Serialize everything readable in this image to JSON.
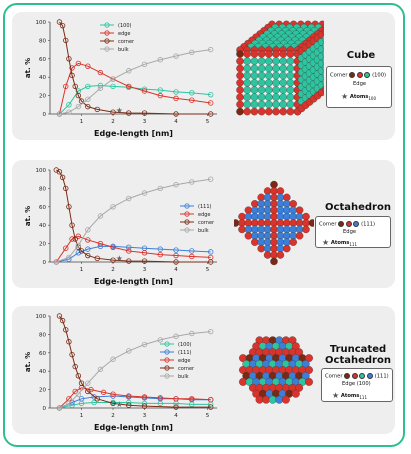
{
  "colors": {
    "frame": "#2fbf8f",
    "panel_bg": "#eeeeee",
    "facet_100": "#2ec4a0",
    "facet_111": "#3b7fd9",
    "edge": "#d9332b",
    "corner": "#7a2a14",
    "bulk": "#a8a8a8"
  },
  "panels": [
    {
      "shape_name": "Cube",
      "atom_icon": "cube-nanoparticle",
      "legend": {
        "corner_label": "Corner",
        "edge_label": "Edge",
        "facet_label": "(100)",
        "atoms_label": "Atoms",
        "atoms_sub": "100"
      }
    },
    {
      "shape_name": "Octahedron",
      "atom_icon": "octahedron-nanoparticle",
      "legend": {
        "corner_label": "Corner",
        "edge_label": "Edge",
        "facet_label": "(111)",
        "atoms_label": "Atoms",
        "atoms_sub": "111"
      }
    },
    {
      "shape_name": "Truncated Octahedron",
      "shape_name_line1": "Truncated",
      "shape_name_line2": "Octahedron",
      "atom_icon": "truncated-octahedron-nanoparticle",
      "legend": {
        "corner_label": "Corner",
        "facet_label": "(111)",
        "edge_label": "Edge (100)",
        "atoms_label": "Atoms",
        "atoms_sub": "111"
      }
    }
  ],
  "chart_data": [
    {
      "type": "line",
      "xlabel": "Edge-length [nm]",
      "ylabel": "at. %",
      "xlim": [
        0,
        5.3
      ],
      "ylim": [
        0,
        100
      ],
      "xticks": [
        1,
        2,
        3,
        4,
        5
      ],
      "yticks": [
        0,
        20,
        40,
        60,
        80,
        100
      ],
      "legend_position": "top-left",
      "series": [
        {
          "name": "(100)",
          "color": "#2ec4a0",
          "x": [
            0.3,
            0.6,
            0.9,
            1.2,
            1.6,
            2.0,
            2.5,
            3.0,
            3.5,
            4.0,
            4.5,
            5.1
          ],
          "y": [
            0,
            10,
            25,
            30,
            31,
            30,
            29,
            27,
            26,
            24,
            23,
            21
          ]
        },
        {
          "name": "edge",
          "color": "#d9332b",
          "x": [
            0.3,
            0.5,
            0.7,
            0.9,
            1.2,
            1.6,
            2.0,
            2.5,
            3.0,
            3.5,
            4.0,
            4.5,
            5.1
          ],
          "y": [
            0,
            30,
            50,
            55,
            52,
            45,
            38,
            30,
            25,
            20,
            17,
            15,
            12
          ]
        },
        {
          "name": "corner",
          "color": "#7a2a14",
          "x": [
            0.3,
            0.4,
            0.5,
            0.6,
            0.7,
            0.8,
            0.9,
            1.0,
            1.2,
            1.5,
            2.0,
            2.5,
            3.0,
            4.0,
            5.1
          ],
          "y": [
            100,
            96,
            80,
            60,
            42,
            30,
            20,
            14,
            8,
            5,
            2,
            1,
            1,
            0,
            0
          ]
        },
        {
          "name": "bulk",
          "color": "#a8a8a8",
          "x": [
            0.3,
            0.6,
            0.9,
            1.2,
            1.6,
            2.0,
            2.5,
            3.0,
            3.5,
            4.0,
            4.5,
            5.1
          ],
          "y": [
            0,
            2,
            8,
            16,
            28,
            38,
            47,
            54,
            59,
            63,
            67,
            70
          ]
        }
      ]
    },
    {
      "type": "line",
      "xlabel": "Edge-length [nm]",
      "ylabel": "at. %",
      "xlim": [
        0,
        5.3
      ],
      "ylim": [
        0,
        100
      ],
      "xticks": [
        1,
        2,
        3,
        4,
        5
      ],
      "yticks": [
        0,
        20,
        40,
        60,
        80,
        100
      ],
      "legend_position": "center-right",
      "series": [
        {
          "name": "(111)",
          "color": "#3b7fd9",
          "x": [
            0.2,
            0.6,
            0.9,
            1.2,
            1.6,
            2.0,
            2.5,
            3.0,
            3.5,
            4.0,
            4.5,
            5.1
          ],
          "y": [
            0,
            3,
            10,
            14,
            17,
            17,
            16,
            15,
            14,
            13,
            12,
            11
          ]
        },
        {
          "name": "edge",
          "color": "#d9332b",
          "x": [
            0.2,
            0.5,
            0.7,
            0.9,
            1.2,
            1.6,
            2.0,
            2.5,
            3.0,
            3.5,
            4.0,
            4.5,
            5.1
          ],
          "y": [
            0,
            15,
            25,
            28,
            24,
            20,
            16,
            12,
            10,
            8,
            7,
            6,
            5
          ]
        },
        {
          "name": "corner",
          "color": "#7a2a14",
          "x": [
            0.2,
            0.3,
            0.4,
            0.5,
            0.6,
            0.7,
            0.8,
            0.9,
            1.0,
            1.2,
            1.5,
            2.0,
            2.5,
            3.0,
            4.0,
            5.1
          ],
          "y": [
            100,
            98,
            92,
            80,
            60,
            40,
            25,
            16,
            12,
            7,
            4,
            2,
            1,
            1,
            0,
            0
          ]
        },
        {
          "name": "bulk",
          "color": "#a8a8a8",
          "x": [
            0.2,
            0.6,
            0.9,
            1.2,
            1.6,
            2.0,
            2.5,
            3.0,
            3.5,
            4.0,
            4.5,
            5.1
          ],
          "y": [
            0,
            5,
            18,
            35,
            50,
            60,
            69,
            75,
            80,
            84,
            87,
            90
          ]
        }
      ]
    },
    {
      "type": "line",
      "xlabel": "Edge-length [nm]",
      "ylabel": "at. %",
      "xlim": [
        0,
        5.3
      ],
      "ylim": [
        0,
        100
      ],
      "xticks": [
        1,
        2,
        3,
        4,
        5
      ],
      "yticks": [
        0,
        20,
        40,
        60,
        80,
        100
      ],
      "legend_position": "center",
      "series": [
        {
          "name": "(100)",
          "color": "#2ec4a0",
          "x": [
            0.3,
            0.7,
            1.0,
            1.4,
            2.0,
            2.5,
            3.0,
            3.5,
            4.0,
            4.5,
            5.1
          ],
          "y": [
            0,
            3,
            5,
            6,
            6,
            6,
            5,
            5,
            5,
            4,
            4
          ]
        },
        {
          "name": "(111)",
          "color": "#3b7fd9",
          "x": [
            0.3,
            0.7,
            1.0,
            1.4,
            2.0,
            2.5,
            3.0,
            3.5,
            4.0,
            4.5,
            5.1
          ],
          "y": [
            0,
            6,
            10,
            12,
            13,
            12,
            11,
            10,
            10,
            9,
            9
          ]
        },
        {
          "name": "edge",
          "color": "#d9332b",
          "x": [
            0.3,
            0.6,
            0.8,
            1.0,
            1.3,
            1.7,
            2.0,
            2.5,
            3.0,
            3.5,
            4.0,
            4.5,
            5.1
          ],
          "y": [
            0,
            10,
            18,
            22,
            20,
            17,
            15,
            13,
            12,
            11,
            10,
            10,
            9
          ]
        },
        {
          "name": "corner",
          "color": "#7a2a14",
          "x": [
            0.3,
            0.4,
            0.5,
            0.6,
            0.7,
            0.8,
            0.9,
            1.0,
            1.2,
            1.5,
            2.0,
            2.5,
            3.0,
            4.0,
            5.1
          ],
          "y": [
            100,
            95,
            85,
            72,
            58,
            45,
            35,
            27,
            18,
            10,
            5,
            3,
            2,
            1,
            1
          ]
        },
        {
          "name": "bulk",
          "color": "#a8a8a8",
          "x": [
            0.3,
            0.6,
            0.9,
            1.2,
            1.6,
            2.0,
            2.5,
            3.0,
            3.5,
            4.0,
            4.5,
            5.1
          ],
          "y": [
            0,
            5,
            15,
            27,
            42,
            53,
            62,
            69,
            74,
            78,
            81,
            83
          ]
        }
      ]
    }
  ]
}
